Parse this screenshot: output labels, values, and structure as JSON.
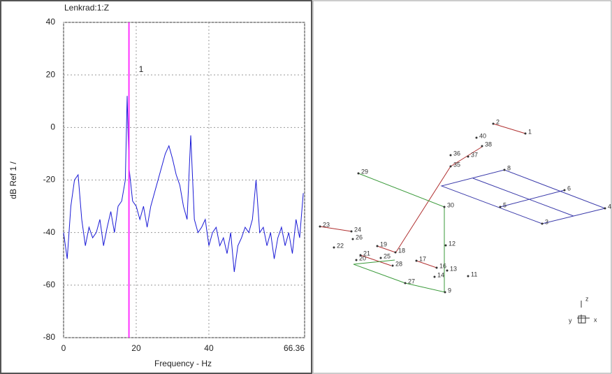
{
  "chart_data": {
    "type": "line",
    "title": "Lenkrad:1:Z",
    "x_label": "Frequency - Hz",
    "y_label": "dB Ref 1 /",
    "xlim": [
      0,
      66.36
    ],
    "xticks": [
      0,
      20,
      40,
      66.36
    ],
    "ylim": [
      -80,
      40
    ],
    "yticks": [
      -80,
      -60,
      -40,
      -20,
      0,
      20,
      40
    ],
    "grid": true,
    "series": [
      {
        "name": "Lenkrad:1:Z",
        "color": "#1a1ad6",
        "x": [
          0,
          1,
          2,
          3,
          4,
          5,
          6,
          7,
          8,
          9,
          10,
          11,
          12,
          13,
          14,
          15,
          16,
          17,
          17.5,
          18,
          19,
          20,
          21,
          22,
          23,
          24,
          25,
          26,
          27,
          28,
          29,
          30,
          31,
          32,
          33,
          34,
          35,
          36,
          37,
          38,
          39,
          40,
          41,
          42,
          43,
          44,
          45,
          46,
          47,
          48,
          49,
          50,
          51,
          52,
          53,
          54,
          55,
          56,
          57,
          58,
          59,
          60,
          61,
          62,
          63,
          64,
          65,
          66
        ],
        "values": [
          -40,
          -50,
          -30,
          -20,
          -18,
          -35,
          -45,
          -38,
          -42,
          -40,
          -35,
          -45,
          -38,
          -32,
          -40,
          -30,
          -28,
          -20,
          12,
          -15,
          -28,
          -30,
          -35,
          -30,
          -38,
          -30,
          -25,
          -20,
          -15,
          -10,
          -7,
          -12,
          -18,
          -22,
          -30,
          -35,
          -3,
          -35,
          -40,
          -38,
          -35,
          -45,
          -40,
          -38,
          -45,
          -42,
          -48,
          -40,
          -55,
          -45,
          -42,
          -38,
          -40,
          -35,
          -20,
          -40,
          -38,
          -45,
          -40,
          -50,
          -42,
          -38,
          -45,
          -40,
          -48,
          -35,
          -42,
          -25
        ]
      }
    ],
    "cursor": {
      "x": 18,
      "label": "1",
      "color": "#ff33ff"
    }
  },
  "wireframe": {
    "nodes": [
      "1",
      "2",
      "3",
      "4",
      "5",
      "6",
      "8",
      "9",
      "11",
      "12",
      "13",
      "14",
      "16",
      "17",
      "18",
      "19",
      "20",
      "21",
      "22",
      "23",
      "24",
      "25",
      "26",
      "27",
      "28",
      "29",
      "30",
      "35",
      "36",
      "37",
      "38",
      "40"
    ],
    "axes": [
      "z",
      "y",
      "x"
    ]
  }
}
